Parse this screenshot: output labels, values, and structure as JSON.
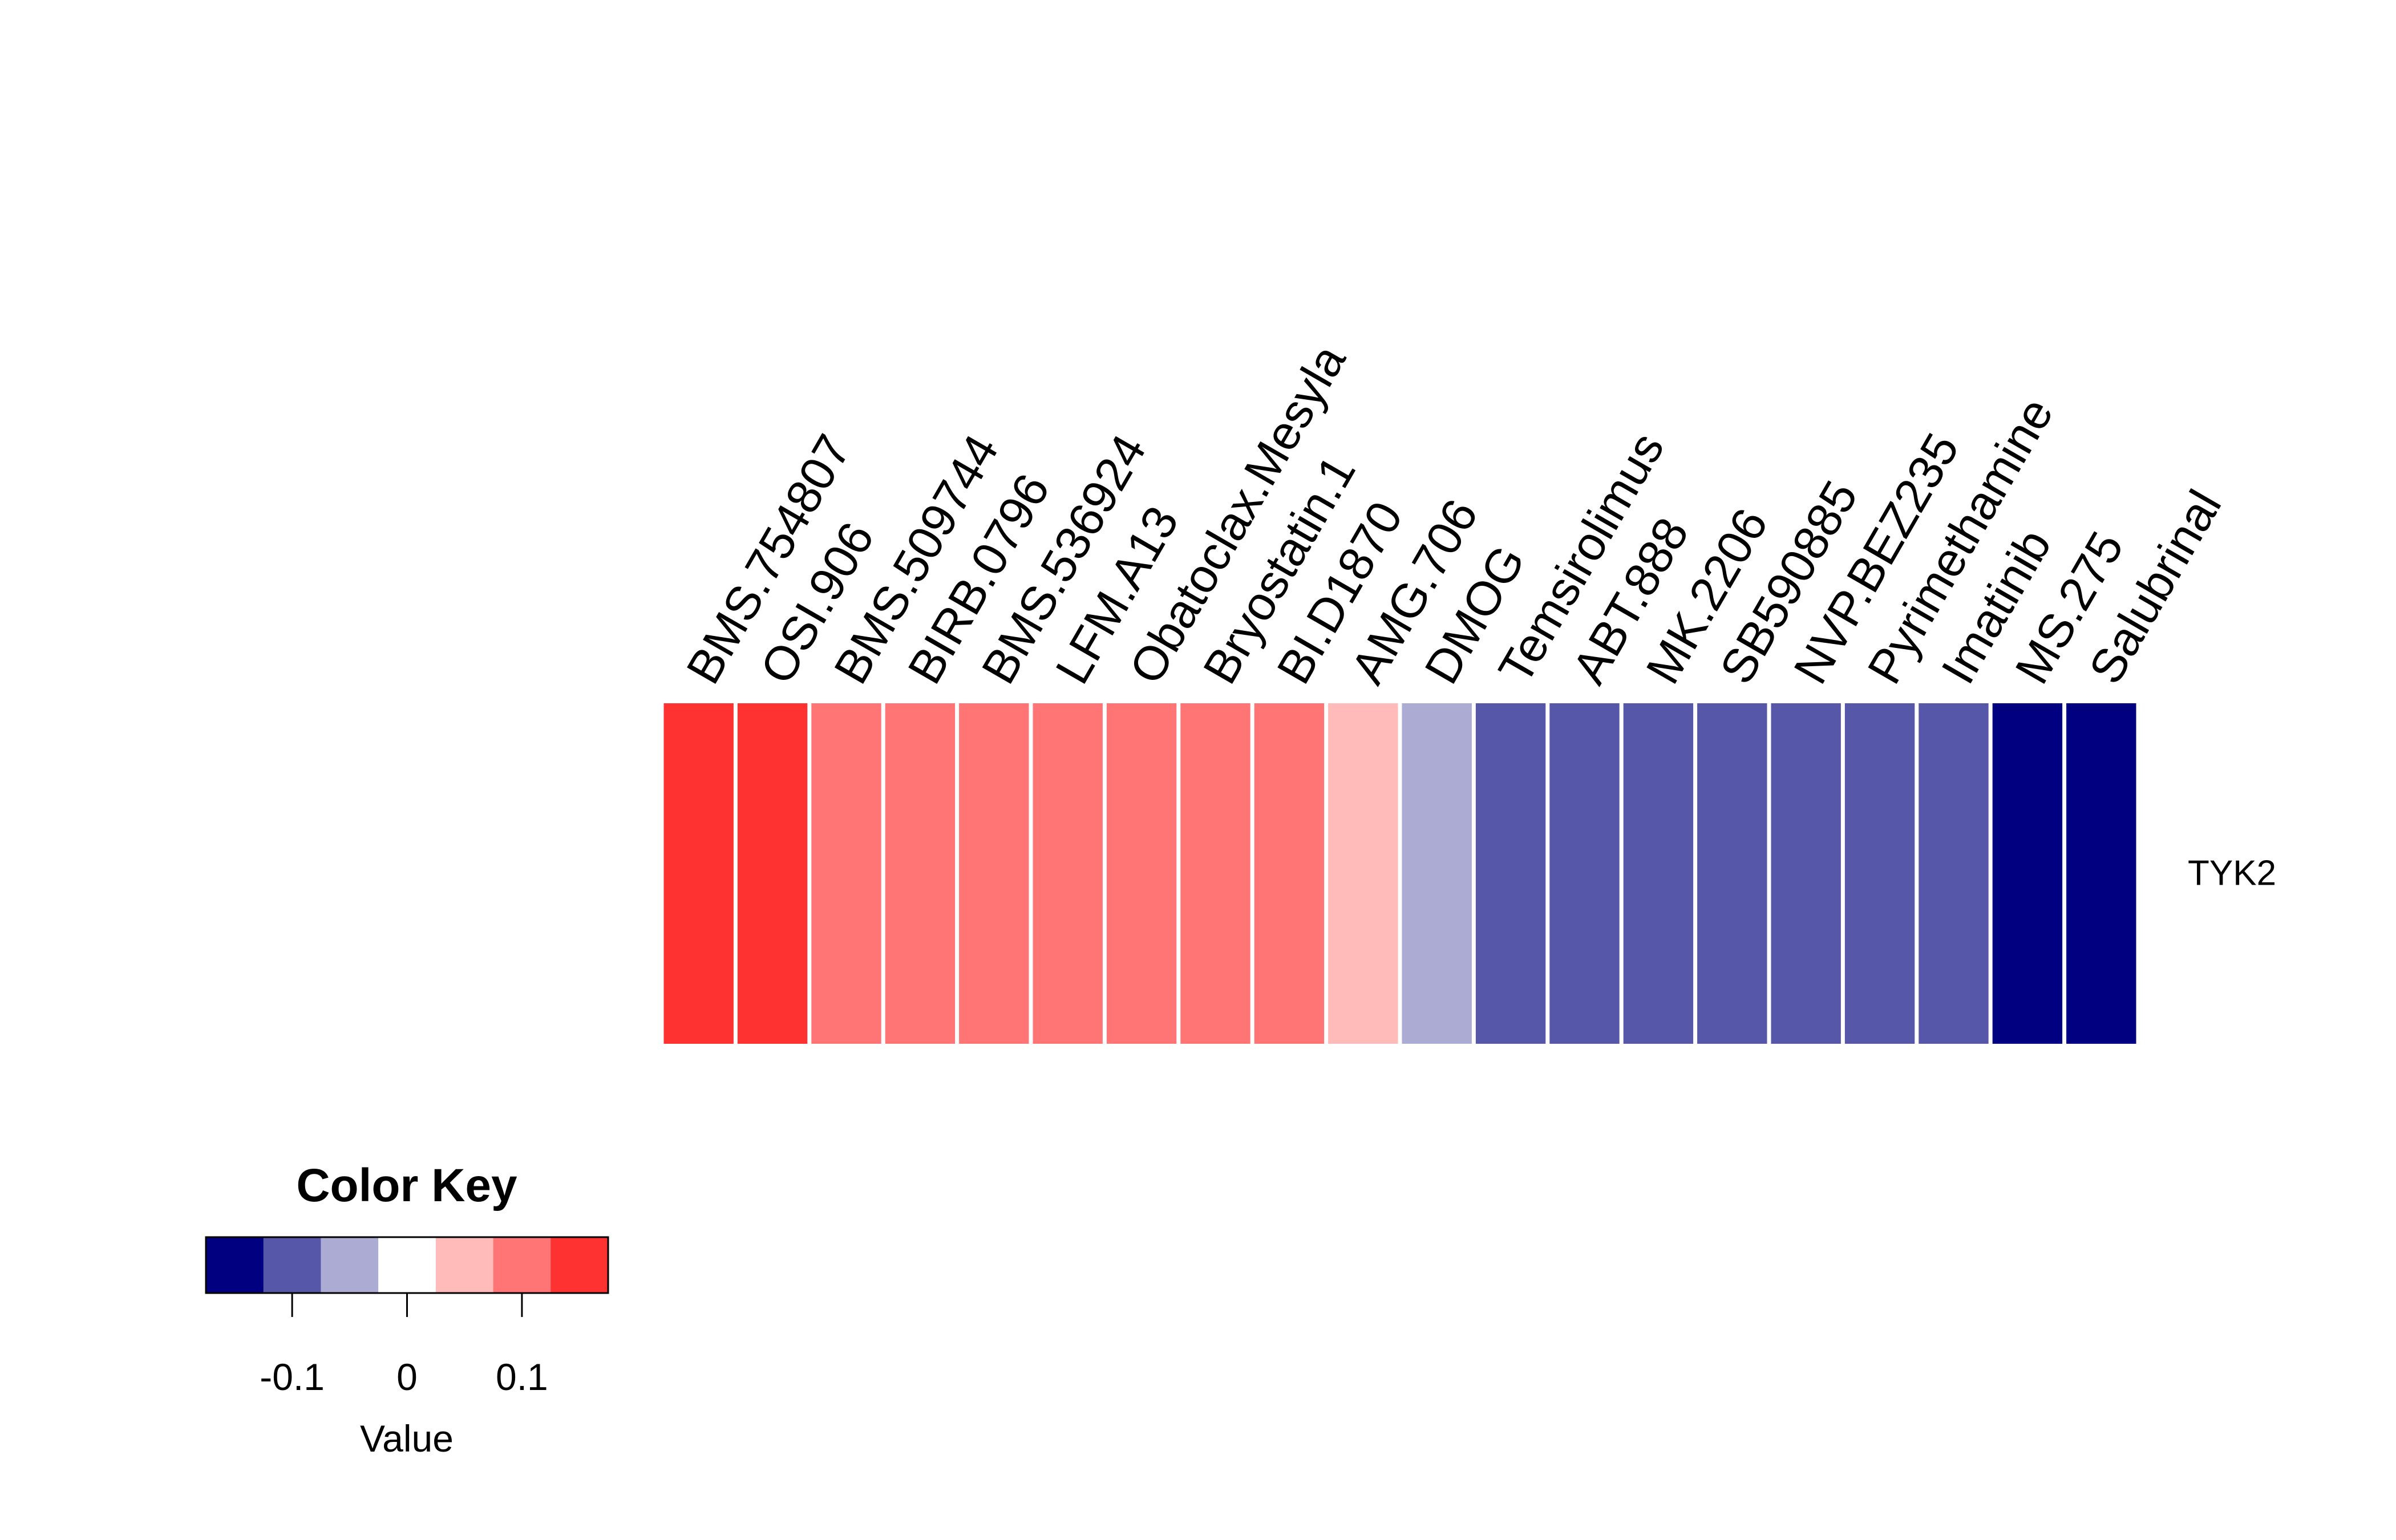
{
  "chart_data": {
    "type": "heatmap",
    "rows": [
      "TYK2"
    ],
    "columns": [
      "BMS.754807",
      "OSI.906",
      "BMS.509744",
      "BIRB.0796",
      "BMS.536924",
      "LFM.A13",
      "Obatoclax.Mesyla",
      "Bryostatin.1",
      "BI.D1870",
      "AMG.706",
      "DMOG",
      "Temsirolimus",
      "ABT.888",
      "MK.2206",
      "SB590885",
      "NVP.BEZ235",
      "Pyrimethamine",
      "Imatinib",
      "MS.275",
      "Salubrinal"
    ],
    "values": [
      [
        0.15,
        0.15,
        0.1,
        0.1,
        0.1,
        0.1,
        0.1,
        0.1,
        0.1,
        0.05,
        -0.05,
        -0.1,
        -0.1,
        -0.1,
        -0.1,
        -0.1,
        -0.1,
        -0.1,
        -0.15,
        -0.15
      ]
    ],
    "color_key": {
      "title": "Color Key",
      "xlabel": "Value",
      "range": [
        -0.175,
        0.175
      ],
      "breaks": [
        -0.175,
        -0.125,
        -0.075,
        -0.025,
        0.025,
        0.075,
        0.125,
        0.175
      ],
      "colors": [
        "#000080",
        "#5757AA",
        "#ABABD4",
        "#FFFFFF",
        "#FFBABA",
        "#FF7575",
        "#FF3232"
      ],
      "ticks": [
        -0.1,
        0,
        0.1
      ],
      "tick_labels": [
        "-0.1",
        "0",
        "0.1"
      ]
    }
  }
}
